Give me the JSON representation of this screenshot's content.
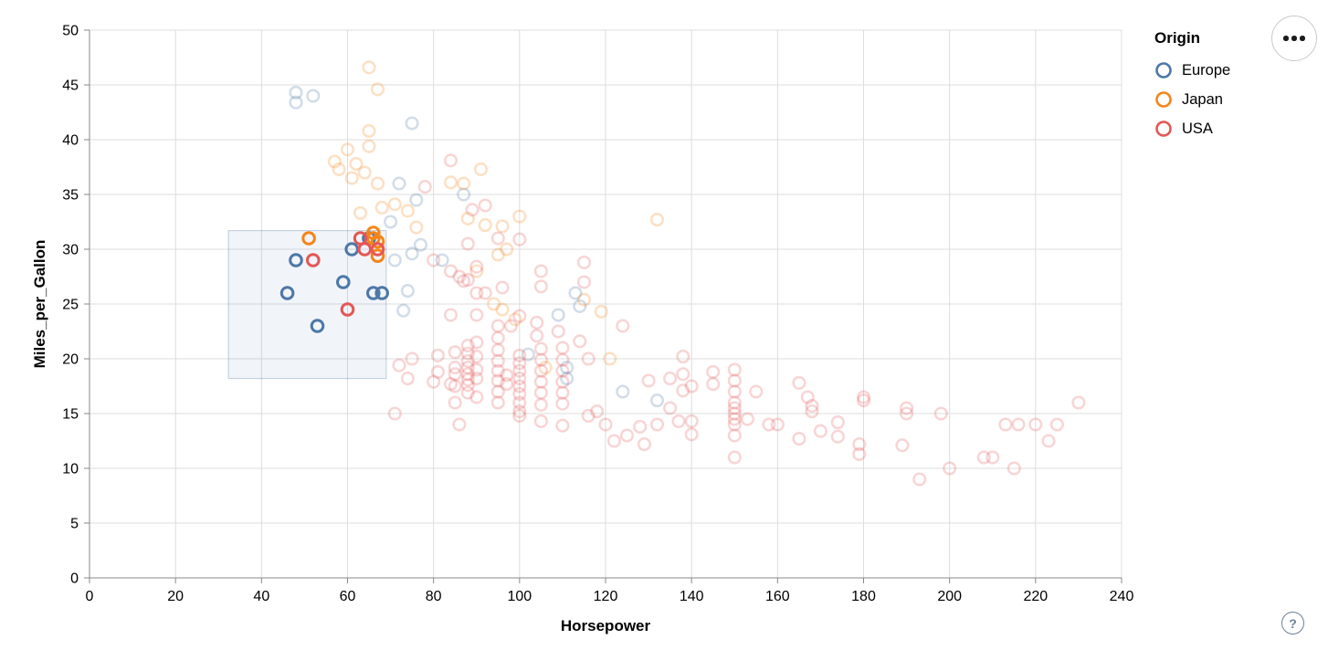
{
  "legend": {
    "title": "Origin",
    "items": [
      {
        "label": "Europe",
        "color": "#4c78a8"
      },
      {
        "label": "Japan",
        "color": "#f58518"
      },
      {
        "label": "USA",
        "color": "#e45756"
      }
    ]
  },
  "controls": {
    "menu_button": "options-menu",
    "help_label": "?"
  },
  "chart_data": {
    "type": "scatter",
    "title": "",
    "xlabel": "Horsepower",
    "ylabel": "Miles_per_Gallon",
    "xlim": [
      0,
      240
    ],
    "ylim": [
      0,
      50
    ],
    "x_ticks": [
      0,
      20,
      40,
      60,
      80,
      100,
      120,
      140,
      160,
      180,
      200,
      220,
      240
    ],
    "y_ticks": [
      0,
      5,
      10,
      15,
      20,
      25,
      30,
      35,
      40,
      45,
      50
    ],
    "grid": true,
    "legend_position": "top-right",
    "point_style": "open-circle",
    "faded_opacity": 0.25,
    "grid_color": "#dddddd",
    "axis_color": "#888888",
    "brush": {
      "hp_range": [
        32.3,
        69
      ],
      "mpg_range": [
        18.2,
        31.7
      ],
      "fill": "#4c78a8",
      "fill_opacity": 0.08,
      "stroke_opacity": 0.35
    },
    "series": [
      {
        "name": "Europe",
        "color": "#4c78a8",
        "points": [
          [
            46,
            26
          ],
          [
            48,
            29
          ],
          [
            53,
            23
          ],
          [
            59,
            27
          ],
          [
            61,
            30
          ],
          [
            65,
            31
          ],
          [
            66,
            26
          ],
          [
            68,
            26
          ],
          [
            48,
            44.3
          ],
          [
            48,
            43.4
          ],
          [
            52,
            44
          ],
          [
            75,
            41.5
          ],
          [
            72,
            36
          ],
          [
            76,
            34.5
          ],
          [
            87,
            35
          ],
          [
            70,
            32.5
          ],
          [
            71,
            29
          ],
          [
            75,
            29.6
          ],
          [
            77,
            30.4
          ],
          [
            82,
            29
          ],
          [
            74,
            26.2
          ],
          [
            73,
            24.4
          ],
          [
            113,
            26
          ],
          [
            114,
            24.8
          ],
          [
            109,
            24
          ],
          [
            102,
            20.4
          ],
          [
            111,
            19.2
          ],
          [
            111,
            18.2
          ],
          [
            124,
            17
          ],
          [
            132,
            16.2
          ]
        ]
      },
      {
        "name": "Japan",
        "color": "#f58518",
        "points": [
          [
            51,
            31
          ],
          [
            66,
            31.5
          ],
          [
            66,
            31
          ],
          [
            67,
            30.7
          ],
          [
            67,
            29.4
          ],
          [
            65,
            46.6
          ],
          [
            67,
            44.6
          ],
          [
            65,
            40.8
          ],
          [
            65,
            39.4
          ],
          [
            60,
            39.1
          ],
          [
            57,
            38
          ],
          [
            62,
            37.8
          ],
          [
            58,
            37.3
          ],
          [
            64,
            37
          ],
          [
            61,
            36.5
          ],
          [
            67,
            36
          ],
          [
            71,
            34.1
          ],
          [
            74,
            33.5
          ],
          [
            68,
            33.8
          ],
          [
            63,
            33.3
          ],
          [
            84,
            36.1
          ],
          [
            87,
            36
          ],
          [
            91,
            37.3
          ],
          [
            100,
            33
          ],
          [
            88,
            32.8
          ],
          [
            92,
            32.2
          ],
          [
            96,
            32.1
          ],
          [
            76,
            32
          ],
          [
            95,
            29.5
          ],
          [
            97,
            30
          ],
          [
            90,
            28
          ],
          [
            94,
            25
          ],
          [
            96,
            24.5
          ],
          [
            99,
            23.6
          ],
          [
            115,
            25.4
          ],
          [
            119,
            24.3
          ],
          [
            121,
            20
          ],
          [
            106,
            19.2
          ],
          [
            132,
            32.7
          ]
        ]
      },
      {
        "name": "USA",
        "color": "#e45756",
        "points": [
          [
            52,
            29
          ],
          [
            60,
            24.5
          ],
          [
            63,
            31
          ],
          [
            64,
            30
          ],
          [
            67,
            30
          ],
          [
            84,
            38.1
          ],
          [
            78,
            35.7
          ],
          [
            89,
            33.6
          ],
          [
            92,
            34
          ],
          [
            80,
            29
          ],
          [
            84,
            28
          ],
          [
            86,
            27.5
          ],
          [
            88,
            30.5
          ],
          [
            90,
            28.4
          ],
          [
            95,
            31
          ],
          [
            100,
            30.9
          ],
          [
            88,
            27.2
          ],
          [
            87,
            27.1
          ],
          [
            92,
            26
          ],
          [
            96,
            26.5
          ],
          [
            90,
            26
          ],
          [
            105,
            28
          ],
          [
            105,
            26.6
          ],
          [
            115,
            28.8
          ],
          [
            115,
            27
          ],
          [
            84,
            24
          ],
          [
            90,
            24
          ],
          [
            95,
            23
          ],
          [
            98,
            23
          ],
          [
            100,
            23.9
          ],
          [
            104,
            23.3
          ],
          [
            104,
            22.1
          ],
          [
            109,
            22.5
          ],
          [
            114,
            21.6
          ],
          [
            124,
            23
          ],
          [
            72,
            19.4
          ],
          [
            74,
            18.2
          ],
          [
            75,
            20
          ],
          [
            81,
            20.3
          ],
          [
            81,
            18.8
          ],
          [
            80,
            17.9
          ],
          [
            84,
            17.7
          ],
          [
            71,
            15
          ],
          [
            86,
            14
          ],
          [
            85,
            20.6
          ],
          [
            85,
            19.2
          ],
          [
            85,
            18.6
          ],
          [
            85,
            17.5
          ],
          [
            85,
            16
          ],
          [
            88,
            21.2
          ],
          [
            88,
            20.5
          ],
          [
            88,
            19.8
          ],
          [
            88,
            19.2
          ],
          [
            88,
            18.6
          ],
          [
            88,
            18.1
          ],
          [
            88,
            17.6
          ],
          [
            88,
            16.9
          ],
          [
            90,
            21.5
          ],
          [
            90,
            20.2
          ],
          [
            90,
            19
          ],
          [
            90,
            18.2
          ],
          [
            90,
            16.5
          ],
          [
            95,
            21.9
          ],
          [
            95,
            20.8
          ],
          [
            95,
            19.8
          ],
          [
            95,
            18.9
          ],
          [
            95,
            18
          ],
          [
            95,
            17
          ],
          [
            95,
            16
          ],
          [
            97,
            18.5
          ],
          [
            97,
            17.7
          ],
          [
            100,
            20.3
          ],
          [
            100,
            19.6
          ],
          [
            100,
            18.9
          ],
          [
            100,
            18.2
          ],
          [
            100,
            17.5
          ],
          [
            100,
            16.8
          ],
          [
            100,
            16
          ],
          [
            100,
            15.2
          ],
          [
            100,
            14.8
          ],
          [
            105,
            20.9
          ],
          [
            105,
            19.9
          ],
          [
            105,
            18.9
          ],
          [
            105,
            17.9
          ],
          [
            105,
            16.9
          ],
          [
            105,
            15.8
          ],
          [
            105,
            14.3
          ],
          [
            110,
            21
          ],
          [
            110,
            19.9
          ],
          [
            110,
            18.9
          ],
          [
            110,
            17.9
          ],
          [
            110,
            16.9
          ],
          [
            110,
            15.9
          ],
          [
            110,
            13.9
          ],
          [
            116,
            20
          ],
          [
            116,
            14.8
          ],
          [
            118,
            15.2
          ],
          [
            120,
            14
          ],
          [
            122,
            12.5
          ],
          [
            125,
            13
          ],
          [
            128,
            13.8
          ],
          [
            129,
            12.2
          ],
          [
            130,
            18
          ],
          [
            132,
            14
          ],
          [
            135,
            18.2
          ],
          [
            135,
            15.5
          ],
          [
            137,
            14.3
          ],
          [
            138,
            20.2
          ],
          [
            138,
            18.6
          ],
          [
            138,
            17.1
          ],
          [
            140,
            17.5
          ],
          [
            140,
            14.3
          ],
          [
            140,
            13.1
          ],
          [
            145,
            18.8
          ],
          [
            145,
            17.7
          ],
          [
            150,
            19
          ],
          [
            150,
            18
          ],
          [
            150,
            17
          ],
          [
            150,
            16
          ],
          [
            150,
            15.5
          ],
          [
            150,
            15
          ],
          [
            150,
            14.5
          ],
          [
            150,
            14
          ],
          [
            150,
            13
          ],
          [
            150,
            11
          ],
          [
            153,
            14.5
          ],
          [
            155,
            17
          ],
          [
            158,
            14
          ],
          [
            160,
            14
          ],
          [
            165,
            17.8
          ],
          [
            165,
            12.7
          ],
          [
            167,
            16.5
          ],
          [
            168,
            15.7
          ],
          [
            168,
            15.2
          ],
          [
            170,
            13.4
          ],
          [
            174,
            14.2
          ],
          [
            174,
            12.9
          ],
          [
            179,
            12.2
          ],
          [
            179,
            11.3
          ],
          [
            180,
            16.5
          ],
          [
            180,
            16.2
          ],
          [
            189,
            12.1
          ],
          [
            190,
            15.5
          ],
          [
            190,
            15
          ],
          [
            193,
            9
          ],
          [
            198,
            15
          ],
          [
            200,
            10
          ],
          [
            208,
            11
          ],
          [
            210,
            11
          ],
          [
            213,
            14
          ],
          [
            215,
            10
          ],
          [
            216,
            14
          ],
          [
            220,
            14
          ],
          [
            223,
            12.5
          ],
          [
            225,
            14
          ],
          [
            230,
            16
          ]
        ]
      }
    ]
  }
}
